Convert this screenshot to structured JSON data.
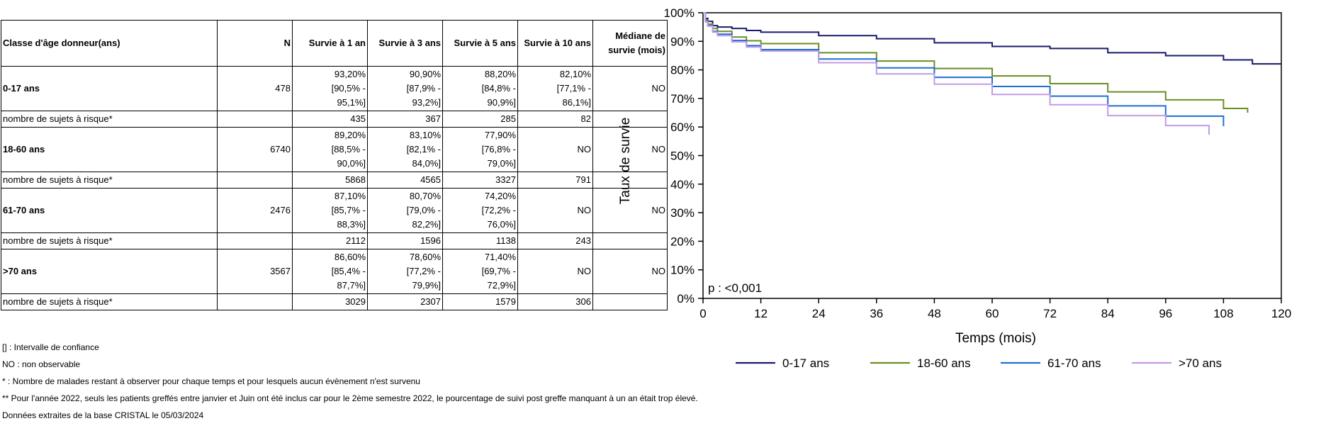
{
  "table": {
    "headers": [
      "Classe d'âge donneur(ans)",
      "N",
      "Survie à 1 an",
      "Survie à 3 ans",
      "Survie à 5 ans",
      "Survie à 10 ans",
      "Médiane de survie (mois)"
    ],
    "groups": [
      {
        "label": "0-17 ans",
        "n": "478",
        "surv": [
          [
            "93,20%",
            "[90,5% -",
            "95,1%]"
          ],
          [
            "90,90%",
            "[87,9% -",
            "93,2%]"
          ],
          [
            "88,20%",
            "[84,8% -",
            "90,9%]"
          ],
          [
            "82,10%",
            "[77,1% -",
            "86,1%]"
          ]
        ],
        "median": "NO",
        "risk_label": "nombre de sujets à risque*",
        "risk": [
          "435",
          "367",
          "285",
          "82"
        ]
      },
      {
        "label": "18-60 ans",
        "n": "6740",
        "surv": [
          [
            "89,20%",
            "[88,5% -",
            "90,0%]"
          ],
          [
            "83,10%",
            "[82,1% -",
            "84,0%]"
          ],
          [
            "77,90%",
            "[76,8% -",
            "79,0%]"
          ],
          [
            "NO"
          ]
        ],
        "median": "NO",
        "risk_label": "nombre de sujets à risque*",
        "risk": [
          "5868",
          "4565",
          "3327",
          "791"
        ]
      },
      {
        "label": "61-70 ans",
        "n": "2476",
        "surv": [
          [
            "87,10%",
            "[85,7% -",
            "88,3%]"
          ],
          [
            "80,70%",
            "[79,0% -",
            "82,2%]"
          ],
          [
            "74,20%",
            "[72,2% -",
            "76,0%]"
          ],
          [
            "NO"
          ]
        ],
        "median": "NO",
        "risk_label": "nombre de sujets à risque*",
        "risk": [
          "2112",
          "1596",
          "1138",
          "243"
        ]
      },
      {
        "label": ">70 ans",
        "n": "3567",
        "surv": [
          [
            "86,60%",
            "[85,4% -",
            "87,7%]"
          ],
          [
            "78,60%",
            "[77,2% -",
            "79,9%]"
          ],
          [
            "71,40%",
            "[69,7% -",
            "72,9%]"
          ],
          [
            "NO"
          ]
        ],
        "median": "NO",
        "risk_label": "nombre de sujets à risque*",
        "risk": [
          "3029",
          "2307",
          "1579",
          "306"
        ]
      }
    ]
  },
  "notes": [
    "[] : Intervalle de confiance",
    "NO : non observable",
    "* : Nombre de malades restant à observer pour chaque temps et pour lesquels aucun évènement n'est survenu",
    "** Pour l'année 2022, seuls les patients greffés entre janvier et Juin ont été inclus car pour le 2ème semestre 2022, le pourcentage de suivi post greffe manquant à un an était trop élevé.",
    "Données extraites de la base CRISTAL le 05/03/2024"
  ],
  "chart_data": {
    "type": "line",
    "xlabel": "Temps (mois)",
    "ylabel": "Taux de survie",
    "xlim": [
      0,
      120
    ],
    "ylim": [
      0,
      100
    ],
    "xticks": [
      0,
      12,
      24,
      36,
      48,
      60,
      72,
      84,
      96,
      108,
      120
    ],
    "yticks": [
      0,
      10,
      20,
      30,
      40,
      50,
      60,
      70,
      80,
      90,
      100
    ],
    "ytick_labels": [
      "0%",
      "10%",
      "20%",
      "30%",
      "40%",
      "50%",
      "60%",
      "70%",
      "80%",
      "90%",
      "100%"
    ],
    "grid": false,
    "legend": "bottom",
    "annotation": "p : <0,001",
    "series": [
      {
        "name": "0-17 ans",
        "color": "#1a1a6e",
        "x": [
          0,
          0.5,
          1,
          2,
          3,
          6,
          9,
          12,
          24,
          36,
          48,
          60,
          72,
          84,
          96,
          108,
          114,
          120
        ],
        "y": [
          100,
          98,
          97,
          95.5,
          95,
          94.5,
          93.8,
          93.2,
          92,
          90.9,
          89.5,
          88.2,
          87.5,
          86,
          85,
          83.5,
          82.1,
          82.1
        ]
      },
      {
        "name": "18-60 ans",
        "color": "#6b8e23",
        "x": [
          0,
          0.5,
          1,
          2,
          3,
          6,
          9,
          12,
          24,
          36,
          48,
          60,
          72,
          84,
          96,
          108,
          113
        ],
        "y": [
          100,
          97.5,
          96,
          94.5,
          93.5,
          91.5,
          90.2,
          89.2,
          86,
          83.1,
          80.5,
          77.9,
          75.2,
          72.3,
          69.5,
          66.5,
          65
        ]
      },
      {
        "name": "61-70 ans",
        "color": "#1f6fd1",
        "x": [
          0,
          0.5,
          1,
          2,
          3,
          6,
          9,
          12,
          24,
          36,
          48,
          60,
          72,
          84,
          96,
          108
        ],
        "y": [
          100,
          97,
          95.5,
          93.5,
          92.5,
          90.3,
          88.5,
          87.1,
          83.8,
          80.7,
          77.4,
          74.2,
          70.8,
          67.4,
          63.8,
          60.3
        ]
      },
      {
        "name": ">70 ans",
        "color": "#c39be8",
        "x": [
          0,
          0.5,
          1,
          2,
          3,
          6,
          9,
          12,
          24,
          36,
          48,
          60,
          72,
          84,
          96,
          105
        ],
        "y": [
          100,
          96.8,
          95.3,
          93.2,
          92,
          89.8,
          88,
          86.6,
          82.5,
          78.6,
          75,
          71.4,
          67.8,
          64,
          60.5,
          57.3
        ]
      }
    ]
  }
}
